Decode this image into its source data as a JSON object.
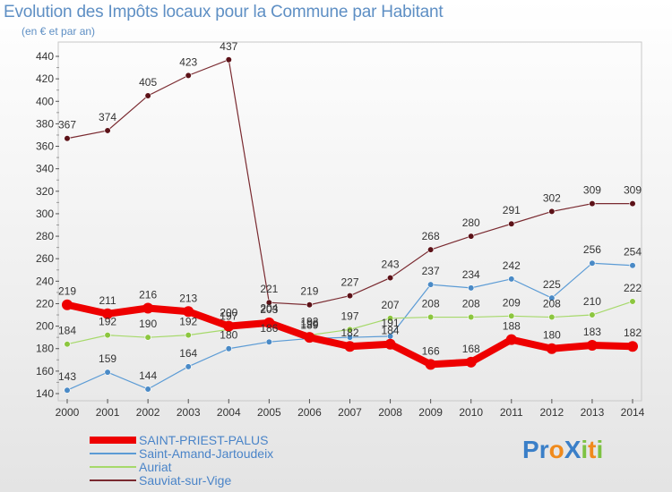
{
  "title": "Evolution des Impôts locaux pour la Commune par Habitant",
  "subtitle": "(en € et par an)",
  "logo": {
    "text": "ProXiti",
    "letters": [
      {
        "ch": "P",
        "color": "#3a7fc8"
      },
      {
        "ch": "r",
        "color": "#3a7fc8"
      },
      {
        "ch": "o",
        "color": "#f08a1c"
      },
      {
        "ch": "X",
        "color": "#3a7fc8"
      },
      {
        "ch": "i",
        "color": "#7dc242"
      },
      {
        "ch": "t",
        "color": "#f08a1c"
      },
      {
        "ch": "i",
        "color": "#7dc242"
      }
    ]
  },
  "chart_data": {
    "type": "line",
    "title": "Evolution des Impôts locaux pour la Commune par Habitant",
    "ylabel": "(en € et par an)",
    "xlabel": "",
    "ylim": [
      140,
      440
    ],
    "ytick_step": 20,
    "categories": [
      "2000",
      "2001",
      "2002",
      "2003",
      "2004",
      "2005",
      "2006",
      "2007",
      "2008",
      "2009",
      "2010",
      "2011",
      "2012",
      "2013",
      "2014"
    ],
    "series": [
      {
        "name": "Sauviat-sur-Vige",
        "color": "#7a2a30",
        "marker": "#5c1218",
        "width": 1.2,
        "values": [
          367,
          374,
          405,
          423,
          437,
          221,
          219,
          227,
          243,
          268,
          280,
          291,
          302,
          309,
          309
        ],
        "labels": [
          "367",
          "374",
          "405",
          "423",
          "437",
          "221",
          "219",
          "227",
          "243",
          "268",
          "280",
          "291",
          "302",
          "309",
          "309"
        ]
      },
      {
        "name": "Saint-Amand-Jartoudeix",
        "color": "#5b9bd5",
        "marker": "#4a8ac6",
        "width": 1.2,
        "values": [
          143,
          159,
          144,
          164,
          180,
          186,
          189,
          190,
          191,
          237,
          234,
          242,
          225,
          256,
          254
        ],
        "labels": [
          "143",
          "159",
          "144",
          "164",
          "180",
          "186",
          "189",
          "",
          "191",
          "237",
          "234",
          "242",
          "225",
          "256",
          "254"
        ]
      },
      {
        "name": "Auriat",
        "color": "#a6d96a",
        "marker": "#8cc63f",
        "width": 1.2,
        "values": [
          184,
          192,
          190,
          192,
          197,
          204,
          192,
          197,
          207,
          208,
          208,
          209,
          208,
          210,
          222
        ],
        "labels": [
          "184",
          "192",
          "190",
          "192",
          "197",
          "204",
          "192",
          "197",
          "207",
          "208",
          "208",
          "209",
          "208",
          "210",
          "222"
        ]
      },
      {
        "name": "SAINT-PRIEST-PALUS",
        "color": "#ee0000",
        "marker": "#ee0000",
        "width": 8,
        "values": [
          219,
          211,
          216,
          213,
          200,
          203,
          190,
          182,
          184,
          166,
          168,
          188,
          180,
          183,
          182
        ],
        "labels": [
          "219",
          "211",
          "216",
          "213",
          "200",
          "203",
          "190",
          "182",
          "184",
          "166",
          "168",
          "188",
          "180",
          "183",
          "182"
        ]
      }
    ],
    "legend": [
      {
        "name": "SAINT-PRIEST-PALUS",
        "color": "#ee0000",
        "thickness": 8
      },
      {
        "name": "Saint-Amand-Jartoudeix",
        "color": "#5b9bd5",
        "thickness": 2
      },
      {
        "name": "Auriat",
        "color": "#a6d96a",
        "thickness": 2
      },
      {
        "name": "Sauviat-sur-Vige",
        "color": "#7a2a30",
        "thickness": 2
      }
    ]
  }
}
